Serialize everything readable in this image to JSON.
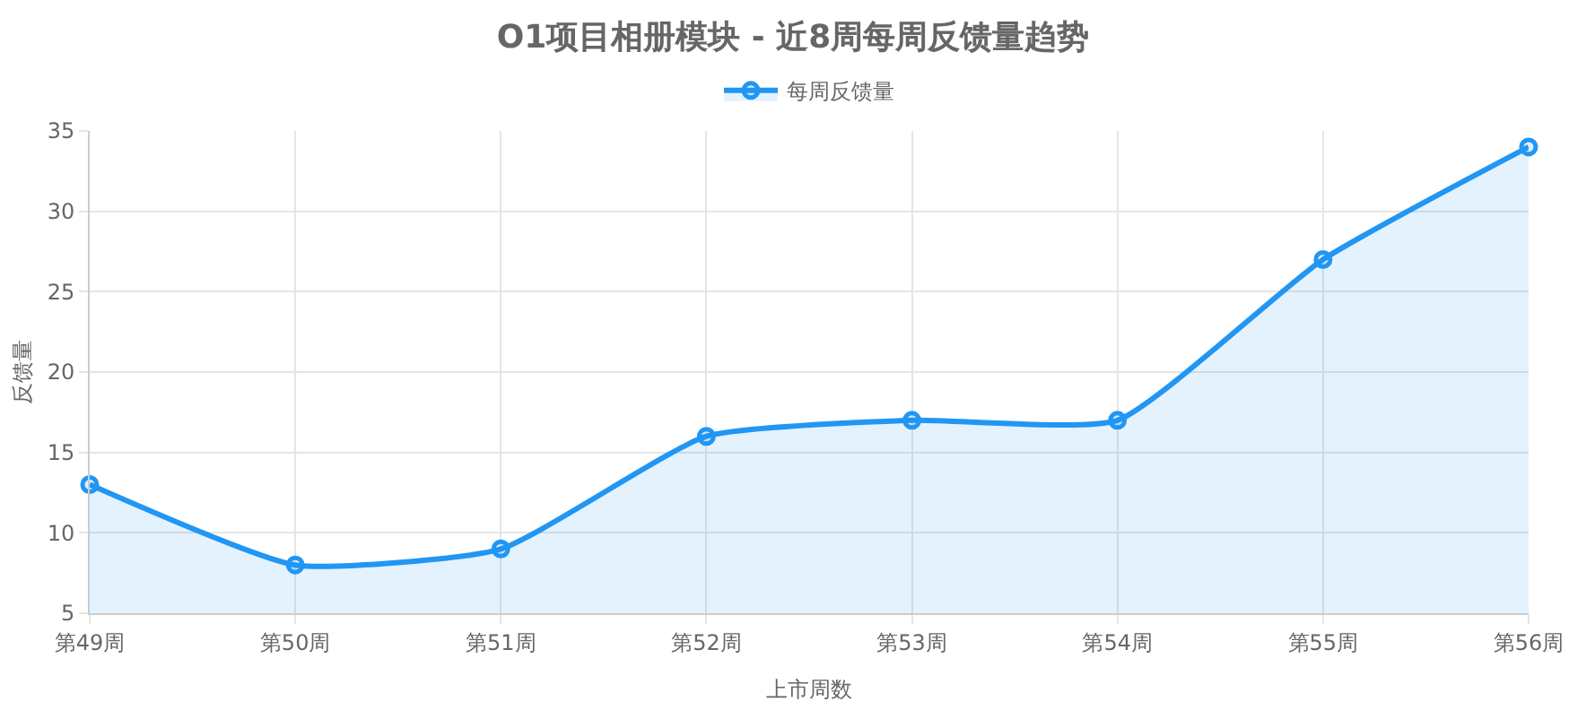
{
  "chart_data": {
    "type": "area",
    "title": "O1项目相册模块 - 近8周每周反馈量趋势",
    "xlabel": "上市周数",
    "ylabel": "反馈量",
    "categories": [
      "第49周",
      "第50周",
      "第51周",
      "第52周",
      "第53周",
      "第54周",
      "第55周",
      "第56周"
    ],
    "series": [
      {
        "name": "每周反馈量",
        "color": "#2196f3",
        "values": [
          13,
          8,
          9,
          16,
          17,
          17,
          27,
          34
        ]
      }
    ],
    "ylim": [
      5,
      35
    ],
    "yticks": [
      5,
      10,
      15,
      20,
      25,
      30,
      35
    ],
    "grid": true,
    "legend": "top",
    "marker": "circle",
    "line_style": "solid"
  }
}
